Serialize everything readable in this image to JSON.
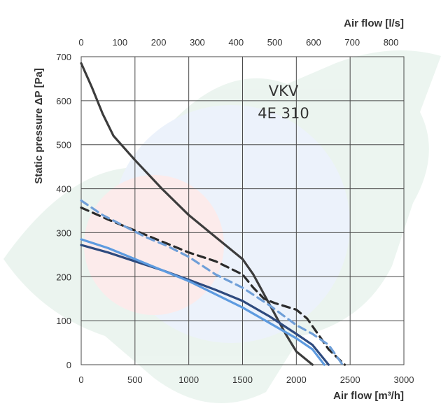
{
  "chart_data": {
    "type": "line",
    "model_line1": "VKV",
    "model_line2": "4E 310",
    "xlabel": "Air flow [m³/h]",
    "x2label": "Air flow [l/s]",
    "ylabel": "Static pressure ΔP [Pa]",
    "xlim": [
      0,
      3000
    ],
    "ylim": [
      0,
      700
    ],
    "x2lim": [
      0,
      833.33
    ],
    "x_ticks": [
      0,
      500,
      1000,
      1500,
      2000,
      2500,
      3000
    ],
    "x2_ticks": [
      0,
      100,
      200,
      300,
      400,
      500,
      600,
      700,
      800
    ],
    "y_ticks": [
      0,
      100,
      200,
      300,
      400,
      500,
      600,
      700
    ],
    "grid": true,
    "series": [
      {
        "color": "#3c3c3c",
        "dashed": false,
        "points": [
          [
            0,
            685
          ],
          [
            100,
            630
          ],
          [
            200,
            570
          ],
          [
            300,
            520
          ],
          [
            500,
            465
          ],
          [
            750,
            400
          ],
          [
            1000,
            340
          ],
          [
            1250,
            290
          ],
          [
            1500,
            240
          ],
          [
            1600,
            205
          ],
          [
            1700,
            160
          ],
          [
            1800,
            115
          ],
          [
            1900,
            70
          ],
          [
            2000,
            30
          ],
          [
            2150,
            0
          ]
        ]
      },
      {
        "color": "#2b2b2b",
        "dashed": true,
        "points": [
          [
            0,
            357
          ],
          [
            250,
            330
          ],
          [
            500,
            305
          ],
          [
            750,
            280
          ],
          [
            1000,
            255
          ],
          [
            1250,
            235
          ],
          [
            1500,
            205
          ],
          [
            1600,
            175
          ],
          [
            1700,
            150
          ],
          [
            1800,
            140
          ],
          [
            2000,
            125
          ],
          [
            2100,
            105
          ],
          [
            2200,
            70
          ],
          [
            2300,
            35
          ],
          [
            2450,
            0
          ]
        ]
      },
      {
        "color": "#6f9fd8",
        "dashed": true,
        "points": [
          [
            0,
            373
          ],
          [
            200,
            340
          ],
          [
            400,
            315
          ],
          [
            600,
            290
          ],
          [
            800,
            270
          ],
          [
            1000,
            245
          ],
          [
            1250,
            205
          ],
          [
            1500,
            175
          ],
          [
            1750,
            135
          ],
          [
            2000,
            90
          ],
          [
            2150,
            70
          ],
          [
            2300,
            45
          ],
          [
            2430,
            0
          ]
        ]
      },
      {
        "color": "#2e4a7e",
        "dashed": false,
        "points": [
          [
            0,
            272
          ],
          [
            250,
            255
          ],
          [
            500,
            235
          ],
          [
            750,
            215
          ],
          [
            1000,
            193
          ],
          [
            1250,
            170
          ],
          [
            1500,
            145
          ],
          [
            1750,
            110
          ],
          [
            2000,
            70
          ],
          [
            2150,
            45
          ],
          [
            2300,
            0
          ]
        ]
      },
      {
        "color": "#5d9be0",
        "dashed": false,
        "points": [
          [
            0,
            285
          ],
          [
            250,
            265
          ],
          [
            500,
            240
          ],
          [
            750,
            215
          ],
          [
            1000,
            190
          ],
          [
            1250,
            160
          ],
          [
            1500,
            130
          ],
          [
            1750,
            95
          ],
          [
            2000,
            60
          ],
          [
            2150,
            35
          ],
          [
            2260,
            0
          ]
        ]
      }
    ]
  }
}
